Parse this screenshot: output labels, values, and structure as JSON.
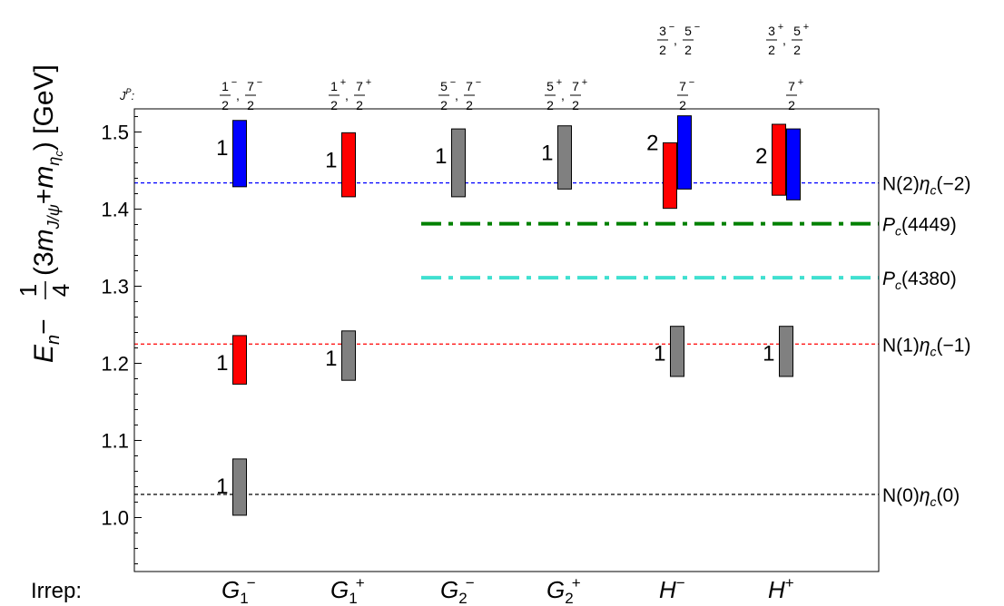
{
  "chart_data": {
    "type": "bar",
    "ylabel": "E_n − ¼(3m_J/ψ + m_ηc) [GeV]",
    "ylim": [
      0.93,
      1.53
    ],
    "yticks": [
      1.0,
      1.1,
      1.2,
      1.3,
      1.4,
      1.5
    ],
    "ytick_labels": [
      "1.0",
      "1.1",
      "1.2",
      "1.3",
      "1.4",
      "1.5"
    ],
    "grid": false,
    "jp_row_label": "J",
    "jp_row_label_sup": "P",
    "jp_row_label_suffix": ":",
    "irrep_row_label": "Irrep:",
    "categories": [
      {
        "name": "G",
        "sub": "1",
        "sup": "−",
        "jp": [
          [
            {
              "n": "1",
              "s": "−"
            },
            {
              "n": "7",
              "s": "−"
            }
          ]
        ]
      },
      {
        "name": "G",
        "sub": "1",
        "sup": "+",
        "jp": [
          [
            {
              "n": "1",
              "s": "+"
            },
            {
              "n": "7",
              "s": "+"
            }
          ]
        ]
      },
      {
        "name": "G",
        "sub": "2",
        "sup": "−",
        "jp": [
          [
            {
              "n": "5",
              "s": "−"
            },
            {
              "n": "7",
              "s": "−"
            }
          ]
        ]
      },
      {
        "name": "G",
        "sub": "2",
        "sup": "+",
        "jp": [
          [
            {
              "n": "5",
              "s": "+"
            },
            {
              "n": "7",
              "s": "+"
            }
          ]
        ]
      },
      {
        "name": "H",
        "sub": "",
        "sup": "−",
        "jp": [
          [
            {
              "n": "3",
              "s": "−"
            },
            {
              "n": "5",
              "s": "−"
            }
          ],
          [
            {
              "n": "7",
              "s": "−"
            }
          ]
        ]
      },
      {
        "name": "H",
        "sub": "",
        "sup": "+",
        "jp": [
          [
            {
              "n": "3",
              "s": "+"
            },
            {
              "n": "5",
              "s": "+"
            }
          ],
          [
            {
              "n": "7",
              "s": "+"
            }
          ]
        ]
      }
    ],
    "jp_denominator": "2",
    "thresholds": [
      {
        "label": "N(0)η",
        "sub": "c",
        "tail": "(0)",
        "y": 1.03,
        "color": "#000000",
        "style": "dashed",
        "from_category": 0
      },
      {
        "label": "N(1)η",
        "sub": "c",
        "tail": "(−1)",
        "y": 1.225,
        "color": "#ff0000",
        "style": "dashed",
        "from_category": 0
      },
      {
        "label": "N(2)η",
        "sub": "c",
        "tail": "(−2)",
        "y": 1.434,
        "color": "#0000ff",
        "style": "dashed",
        "from_category": 0
      },
      {
        "label": "P",
        "sub": "c",
        "tail": "(4380)",
        "y": 1.311,
        "color": "#40e0d0",
        "style": "dashdot",
        "from_category": 2
      },
      {
        "label": "P",
        "sub": "c",
        "tail": "(4449)",
        "y": 1.381,
        "color": "#008000",
        "style": "dashdot",
        "from_category": 2
      }
    ],
    "levels": [
      {
        "category": 0,
        "low": 1.003,
        "high": 1.076,
        "color": "#808080",
        "offset": 0,
        "count": "1",
        "count_color": "#000000"
      },
      {
        "category": 0,
        "low": 1.173,
        "high": 1.236,
        "color": "#ff0000",
        "offset": 0,
        "count": "1",
        "count_color": "#ff0000"
      },
      {
        "category": 0,
        "low": 1.429,
        "high": 1.515,
        "color": "#0000ff",
        "offset": 0,
        "count": "1",
        "count_color": "#0000ff"
      },
      {
        "category": 1,
        "low": 1.178,
        "high": 1.242,
        "color": "#808080",
        "offset": 0,
        "count": "1",
        "count_color": "#ff0000"
      },
      {
        "category": 1,
        "low": 1.416,
        "high": 1.499,
        "color": "#ff0000",
        "offset": 0,
        "count": "1",
        "count_color": "#0000ff"
      },
      {
        "category": 2,
        "low": 1.416,
        "high": 1.504,
        "color": "#808080",
        "offset": 0,
        "count": "1",
        "count_color": "#0000ff"
      },
      {
        "category": 3,
        "low": 1.426,
        "high": 1.508,
        "color": "#808080",
        "offset": 0,
        "count": "1",
        "count_color": "#0000ff"
      },
      {
        "category": 4,
        "low": 1.183,
        "high": 1.248,
        "color": "#808080",
        "offset": 0,
        "count": "1",
        "count_color": "#ff0000"
      },
      {
        "category": 4,
        "low": 1.401,
        "high": 1.486,
        "color": "#ff0000",
        "offset": -0.5,
        "count": "",
        "count_color": "#ff0000"
      },
      {
        "category": 4,
        "low": 1.426,
        "high": 1.521,
        "color": "#0000ff",
        "offset": 0.5,
        "count": "2",
        "count_color": "#0000ff"
      },
      {
        "category": 5,
        "low": 1.183,
        "high": 1.248,
        "color": "#808080",
        "offset": 0,
        "count": "1",
        "count_color": "#ff0000"
      },
      {
        "category": 5,
        "low": 1.418,
        "high": 1.51,
        "color": "#ff0000",
        "offset": -0.5,
        "count": "",
        "count_color": "#ff0000"
      },
      {
        "category": 5,
        "low": 1.412,
        "high": 1.504,
        "color": "#0000ff",
        "offset": 0.5,
        "count": "2",
        "count_color": "#0000ff"
      }
    ]
  }
}
